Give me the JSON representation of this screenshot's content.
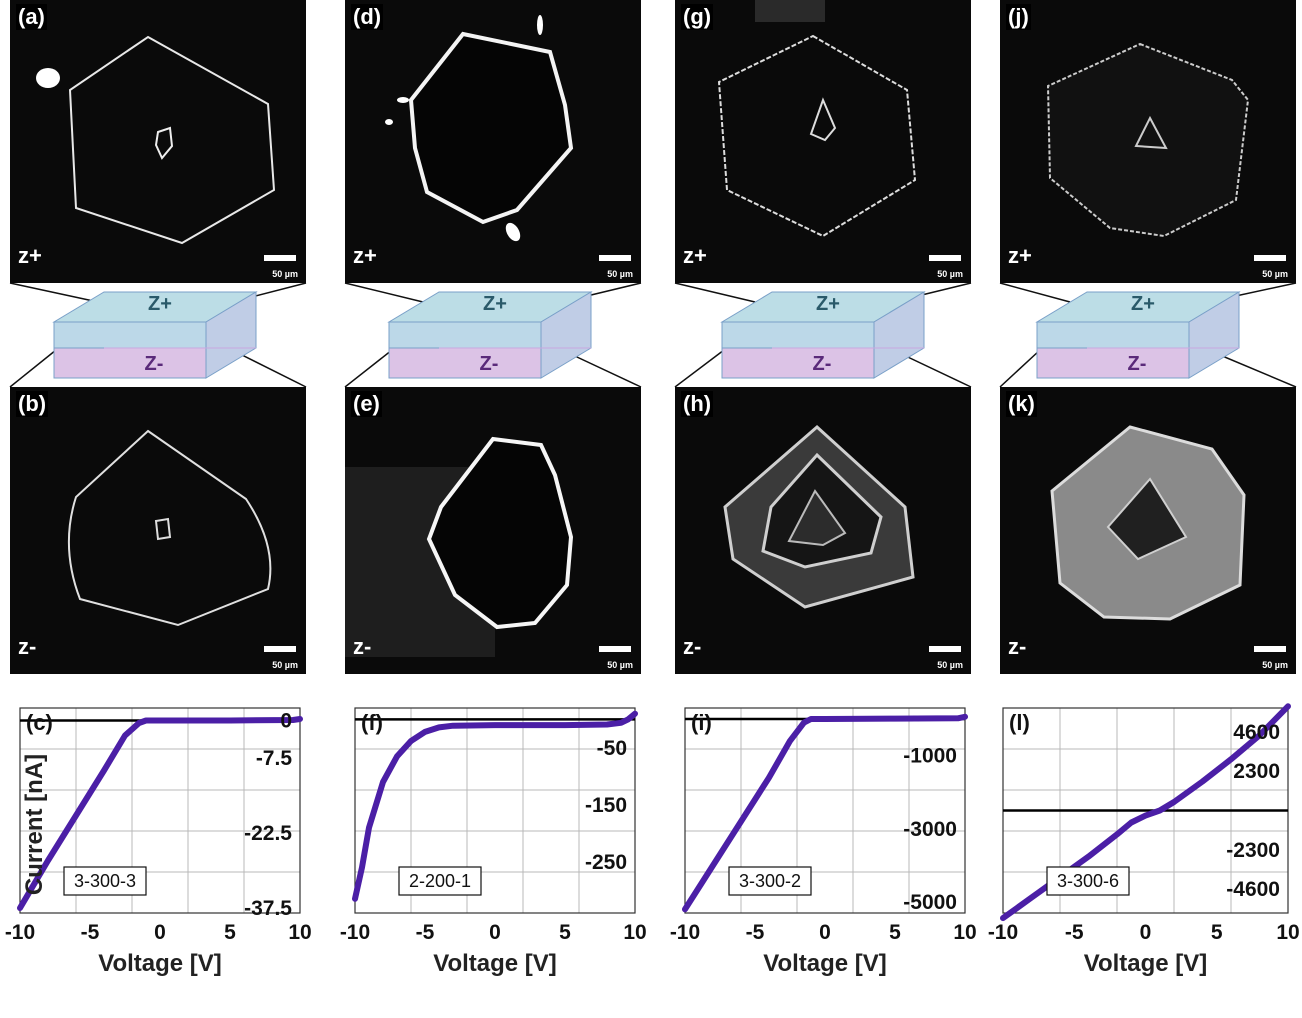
{
  "panels": {
    "a": {
      "label": "(a)",
      "side": "z+",
      "scale": "50 µm"
    },
    "b": {
      "label": "(b)",
      "side": "z-",
      "scale": "50 µm"
    },
    "d": {
      "label": "(d)",
      "side": "z+",
      "scale": "50 µm"
    },
    "e": {
      "label": "(e)",
      "side": "z-",
      "scale": "50 µm"
    },
    "g": {
      "label": "(g)",
      "side": "z+",
      "scale": "50 µm"
    },
    "h": {
      "label": "(h)",
      "side": "z-",
      "scale": "50 µm"
    },
    "j": {
      "label": "(j)",
      "side": "z+",
      "scale": "50 µm"
    },
    "k": {
      "label": "(k)",
      "side": "z-",
      "scale": "50 µm"
    }
  },
  "box": {
    "top": "Z+",
    "bottom": "Z-"
  },
  "colors": {
    "curve": "#4b1fa6",
    "box_top": "#bcdde6",
    "box_bottom": "#dcc3e6",
    "grid": "#b8b8b8"
  },
  "chart_data": [
    {
      "type": "line",
      "label": "(c)",
      "sample": "3-300-3",
      "xlabel": "Voltage [V]",
      "ylabel": "Current [nA]",
      "xlim": [
        -10,
        10
      ],
      "ylim": [
        -38.5,
        2.5
      ],
      "xticks": [
        "-10",
        "-5",
        "0",
        "5",
        "10"
      ],
      "yticks": [
        {
          "v": 0,
          "t": "0"
        },
        {
          "v": -7.5,
          "t": "-7.5"
        },
        {
          "v": -22.5,
          "t": "-22.5"
        },
        {
          "v": -37.5,
          "t": "-37.5"
        }
      ],
      "series": [
        {
          "x": [
            -10,
            -8,
            -6,
            -4,
            -2.5,
            -1.5,
            -1.0,
            0,
            5,
            9.5,
            10
          ],
          "y": [
            -37.5,
            -28,
            -19,
            -10,
            -3.0,
            -0.5,
            0,
            0,
            0,
            0.1,
            0.3
          ]
        }
      ]
    },
    {
      "type": "line",
      "label": "(f)",
      "sample": "2-200-1",
      "xlabel": "Voltage [V]",
      "ylabel": "",
      "xlim": [
        -10,
        10
      ],
      "ylim": [
        -340,
        20
      ],
      "xticks": [
        "-10",
        "-5",
        "0",
        "5",
        "10"
      ],
      "yticks": [
        {
          "v": -50,
          "t": "-50"
        },
        {
          "v": -150,
          "t": "-150"
        },
        {
          "v": -250,
          "t": "-250"
        }
      ],
      "series": [
        {
          "x": [
            -10,
            -9.5,
            -9,
            -8,
            -7,
            -6,
            -5,
            -4,
            -3,
            0,
            5,
            8,
            9,
            9.5,
            10
          ],
          "y": [
            -315,
            -260,
            -190,
            -110,
            -65,
            -38,
            -22,
            -14,
            -11,
            -10,
            -10,
            -9,
            -6,
            0,
            10
          ]
        }
      ]
    },
    {
      "type": "line",
      "label": "(i)",
      "sample": "3-300-2",
      "xlabel": "Voltage [V]",
      "ylabel": "",
      "xlim": [
        -10,
        10
      ],
      "ylim": [
        -5300,
        300
      ],
      "xticks": [
        "-10",
        "-5",
        "0",
        "5",
        "10"
      ],
      "yticks": [
        {
          "v": -1000,
          "t": "-1000"
        },
        {
          "v": -3000,
          "t": "-3000"
        },
        {
          "v": -5000,
          "t": "-5000"
        }
      ],
      "series": [
        {
          "x": [
            -10,
            -8,
            -6,
            -4,
            -2.5,
            -1.5,
            -1.0,
            0,
            5,
            9.5,
            10
          ],
          "y": [
            -5200,
            -4000,
            -2800,
            -1600,
            -600,
            -100,
            0,
            0,
            10,
            20,
            60
          ]
        }
      ]
    },
    {
      "type": "line",
      "label": "(l)",
      "sample": "3-300-6",
      "xlabel": "Voltage [V]",
      "ylabel": "",
      "xlim": [
        -10,
        10
      ],
      "ylim": [
        -6000,
        6000
      ],
      "xticks": [
        "-10",
        "-5",
        "0",
        "5",
        "10"
      ],
      "yticks": [
        {
          "v": 4600,
          "t": "4600"
        },
        {
          "v": 2300,
          "t": "2300"
        },
        {
          "v": -2300,
          "t": "-2300"
        },
        {
          "v": -4600,
          "t": "-4600"
        }
      ],
      "series": [
        {
          "x": [
            -10,
            -8,
            -6,
            -4,
            -2,
            -1,
            0,
            1,
            2,
            4,
            6,
            8,
            10
          ],
          "y": [
            -6300,
            -5100,
            -3900,
            -2700,
            -1400,
            -700,
            -300,
            0,
            500,
            1700,
            3000,
            4400,
            6100
          ]
        }
      ]
    }
  ]
}
